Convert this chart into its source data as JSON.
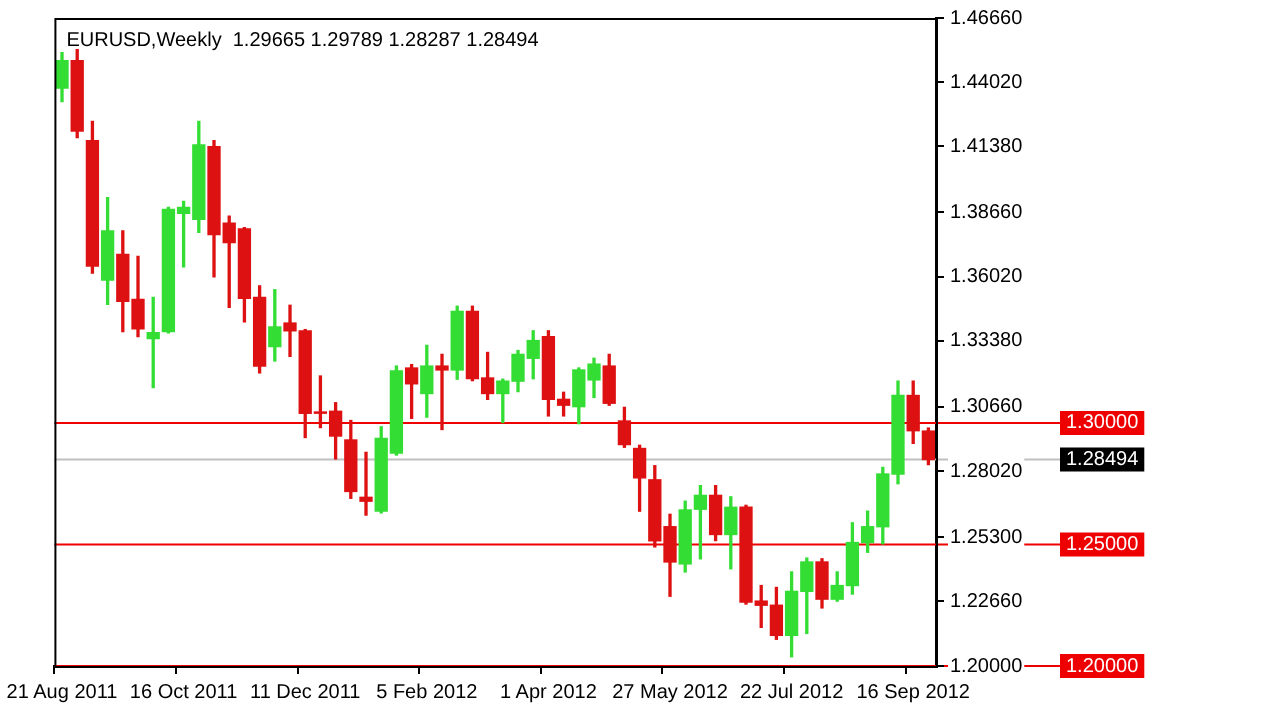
{
  "chart_data": {
    "type": "candlestick",
    "title": "EURUSD,Weekly  1.29665 1.29789 1.28287 1.28494",
    "categories": [
      "21 Aug 2011",
      null,
      null,
      null,
      null,
      null,
      null,
      null,
      "16 Oct 2011",
      null,
      null,
      null,
      null,
      null,
      null,
      null,
      "11 Dec 2011",
      null,
      null,
      null,
      null,
      null,
      null,
      null,
      "5 Feb 2012",
      null,
      null,
      null,
      null,
      null,
      null,
      null,
      "1 Apr 2012",
      null,
      null,
      null,
      null,
      null,
      null,
      null,
      "27 May 2012",
      null,
      null,
      null,
      null,
      null,
      null,
      null,
      "22 Jul 2012",
      null,
      null,
      null,
      null,
      null,
      null,
      null,
      "16 Sep 2012",
      null
    ],
    "ohlc": [
      [
        1.4378,
        1.4523,
        1.4322,
        1.4491
      ],
      [
        1.4491,
        1.4536,
        1.4174,
        1.4201
      ],
      [
        1.4161,
        1.4241,
        1.3617,
        1.3645
      ],
      [
        1.3588,
        1.3927,
        1.3488,
        1.379
      ],
      [
        1.3693,
        1.379,
        1.3376,
        1.35
      ],
      [
        1.3508,
        1.3685,
        1.3355,
        1.3387
      ],
      [
        1.3347,
        1.3516,
        1.3145,
        1.3371
      ],
      [
        1.3376,
        1.3887,
        1.3371,
        1.3879
      ],
      [
        1.3862,
        1.3911,
        1.3642,
        1.3887
      ],
      [
        1.3838,
        1.4241,
        1.3784,
        1.4144
      ],
      [
        1.4137,
        1.4161,
        1.3601,
        1.3775
      ],
      [
        1.3822,
        1.3851,
        1.3476,
        1.3742
      ],
      [
        1.3798,
        1.3803,
        1.3416,
        1.3513
      ],
      [
        1.3516,
        1.3564,
        1.3206,
        1.3234
      ],
      [
        1.3314,
        1.3548,
        1.3255,
        1.3395
      ],
      [
        1.3411,
        1.3484,
        1.3274,
        1.3379
      ],
      [
        1.3379,
        1.3384,
        1.294,
        1.304
      ],
      [
        1.3045,
        1.3193,
        1.2981,
        1.304
      ],
      [
        1.3048,
        1.3083,
        1.2852,
        1.2946
      ],
      [
        1.293,
        1.301,
        1.269,
        1.2718
      ],
      [
        1.2694,
        1.2879,
        1.2621,
        1.2678
      ],
      [
        1.2637,
        1.2984,
        1.263,
        1.2936
      ],
      [
        1.2876,
        1.3234,
        1.2868,
        1.3214
      ],
      [
        1.3226,
        1.324,
        1.3019,
        1.3161
      ],
      [
        1.3121,
        1.3319,
        1.3024,
        1.3234
      ],
      [
        1.3234,
        1.3282,
        1.2973,
        1.3218
      ],
      [
        1.3218,
        1.348,
        1.318,
        1.3459
      ],
      [
        1.3459,
        1.348,
        1.3174,
        1.3182
      ],
      [
        1.3185,
        1.329,
        1.3097,
        1.3121
      ],
      [
        1.3121,
        1.318,
        1.3002,
        1.3172
      ],
      [
        1.3172,
        1.3298,
        1.3129,
        1.3282
      ],
      [
        1.3266,
        1.3379,
        1.3182,
        1.3339
      ],
      [
        1.3355,
        1.3379,
        1.3029,
        1.3097
      ],
      [
        1.3097,
        1.3126,
        1.3029,
        1.3073
      ],
      [
        1.3067,
        1.3226,
        1.2997,
        1.3218
      ],
      [
        1.3177,
        1.3266,
        1.3105,
        1.3242
      ],
      [
        1.3234,
        1.3282,
        1.3073,
        1.3081
      ],
      [
        1.3008,
        1.3064,
        1.29,
        1.2911
      ],
      [
        1.2895,
        1.2908,
        1.2637,
        1.2774
      ],
      [
        1.2766,
        1.2824,
        1.249,
        1.2515
      ],
      [
        1.2573,
        1.2624,
        1.2287,
        1.2428
      ],
      [
        1.242,
        1.2678,
        1.2387,
        1.2642
      ],
      [
        1.2645,
        1.2742,
        1.2441,
        1.2702
      ],
      [
        1.2702,
        1.2742,
        1.2516,
        1.2541
      ],
      [
        1.2541,
        1.2696,
        1.24,
        1.2653
      ],
      [
        1.2653,
        1.2661,
        1.2255,
        1.2263
      ],
      [
        1.2267,
        1.2331,
        1.2159,
        1.225
      ],
      [
        1.225,
        1.2323,
        1.211,
        1.2126
      ],
      [
        1.2126,
        1.2387,
        1.2038,
        1.2307
      ],
      [
        1.2307,
        1.2444,
        1.2134,
        1.2428
      ],
      [
        1.2428,
        1.2441,
        1.2239,
        1.2275
      ],
      [
        1.2275,
        1.2387,
        1.2267,
        1.2331
      ],
      [
        1.2331,
        1.2589,
        1.2296,
        1.2508
      ],
      [
        1.2508,
        1.2637,
        1.2468,
        1.2573
      ],
      [
        1.2573,
        1.2817,
        1.2503,
        1.279
      ],
      [
        1.279,
        1.3172,
        1.275,
        1.3113
      ],
      [
        1.3113,
        1.3172,
        1.2916,
        1.2968
      ],
      [
        1.29665,
        1.29789,
        1.28287,
        1.28494
      ]
    ],
    "colors": [
      "#33dd33",
      "#dd1111",
      "#dd1111",
      "#33dd33",
      "#dd1111",
      "#dd1111",
      "#33dd33",
      "#33dd33",
      "#33dd33",
      "#33dd33",
      "#dd1111",
      "#dd1111",
      "#dd1111",
      "#dd1111",
      "#33dd33",
      "#dd1111",
      "#dd1111",
      "#dd1111",
      "#dd1111",
      "#dd1111",
      "#dd1111",
      "#33dd33",
      "#33dd33",
      "#dd1111",
      "#33dd33",
      "#dd1111",
      "#33dd33",
      "#dd1111",
      "#dd1111",
      "#33dd33",
      "#33dd33",
      "#33dd33",
      "#dd1111",
      "#dd1111",
      "#33dd33",
      "#33dd33",
      "#dd1111",
      "#dd1111",
      "#dd1111",
      "#dd1111",
      "#dd1111",
      "#33dd33",
      "#33dd33",
      "#dd1111",
      "#33dd33",
      "#dd1111",
      "#dd1111",
      "#dd1111",
      "#33dd33",
      "#33dd33",
      "#dd1111",
      "#33dd33",
      "#33dd33",
      "#33dd33",
      "#33dd33",
      "#33dd33",
      "#dd1111",
      "#dd1111"
    ],
    "ylim": [
      1.2,
      1.4666
    ],
    "yticks": [
      {
        "value": 1.2,
        "label": "1.20000"
      },
      {
        "value": 1.2266,
        "label": "1.22660"
      },
      {
        "value": 1.253,
        "label": "1.25300"
      },
      {
        "value": 1.2802,
        "label": "1.28020"
      },
      {
        "value": 1.3066,
        "label": "1.30660"
      },
      {
        "value": 1.3338,
        "label": "1.33380"
      },
      {
        "value": 1.3602,
        "label": "1.36020"
      },
      {
        "value": 1.3866,
        "label": "1.38660"
      },
      {
        "value": 1.4138,
        "label": "1.41380"
      },
      {
        "value": 1.4402,
        "label": "1.44020"
      },
      {
        "value": 1.4666,
        "label": "1.46660"
      }
    ],
    "ref_lines": [
      {
        "axis": "y",
        "value": 1.3,
        "label": "1.30000",
        "color": "#ee0000"
      },
      {
        "axis": "y",
        "value": 1.25,
        "label": "1.25000",
        "color": "#ee0000"
      },
      {
        "axis": "y",
        "value": 1.2,
        "label": "1.20000",
        "color": "#ee0000"
      },
      {
        "axis": "y",
        "value": 1.28494,
        "label": "1.28494",
        "color": "#c0c0c0"
      }
    ],
    "grid": false,
    "legend": false
  }
}
